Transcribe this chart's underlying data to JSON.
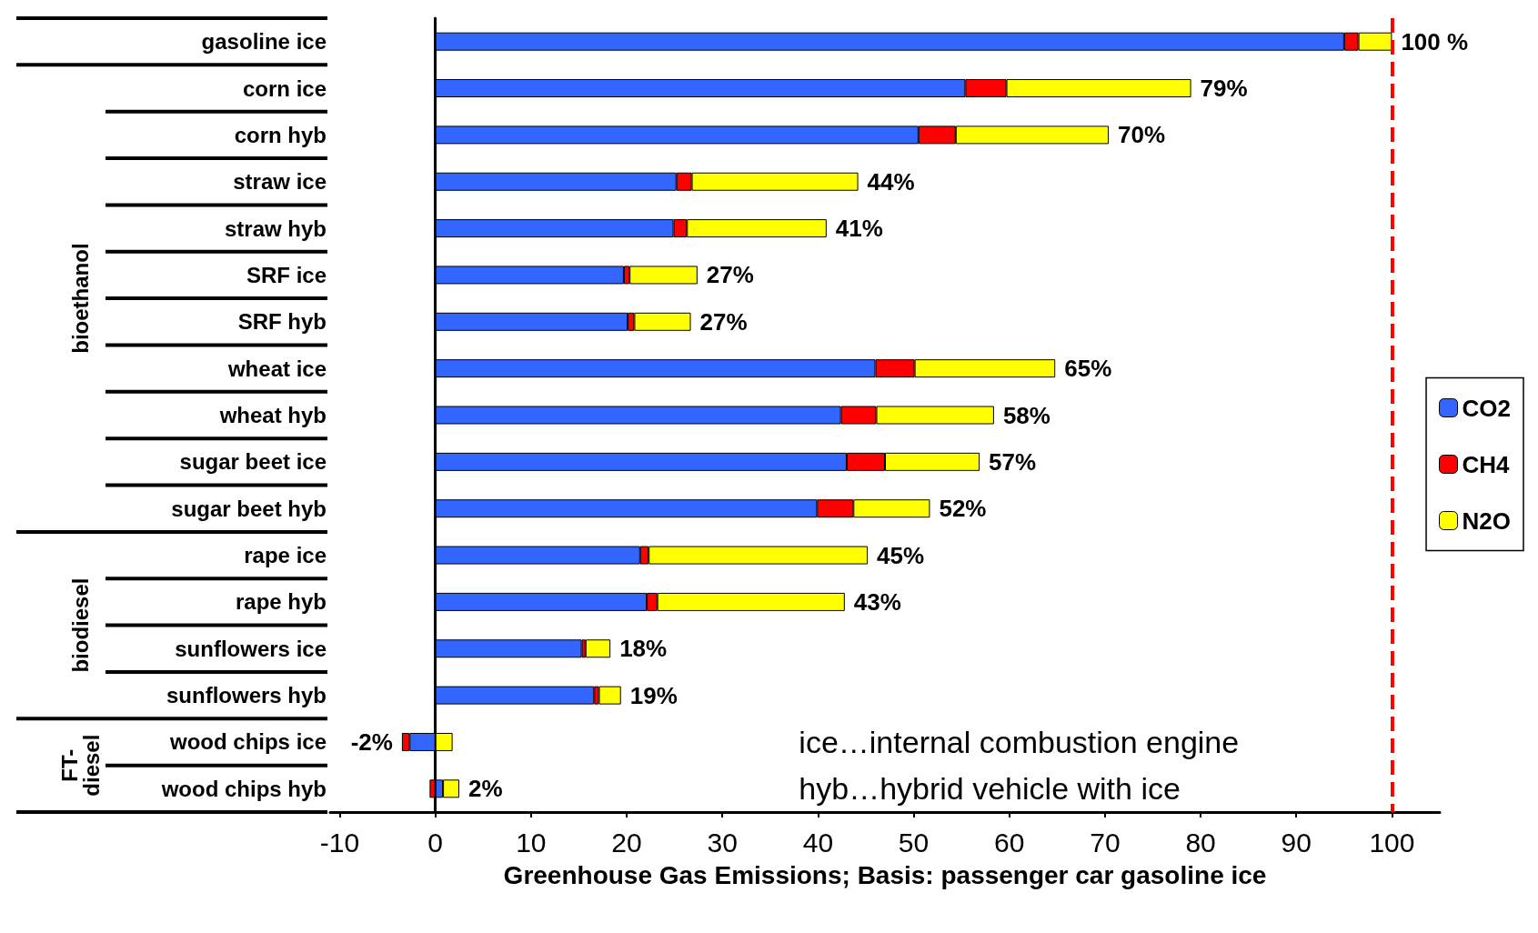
{
  "chart_data": {
    "type": "bar",
    "orientation": "horizontal",
    "stacked": true,
    "xlabel": "Greenhouse Gas Emissions; Basis: passenger car gasoline ice",
    "categories": [
      "gasoline ice",
      "corn ice",
      "corn hyb",
      "straw ice",
      "straw hyb",
      "SRF ice",
      "SRF hyb",
      "wheat ice",
      "wheat hyb",
      "sugar beet ice",
      "sugar beet hyb",
      "rape ice",
      "rape hyb",
      "sunflowers ice",
      "sunflowers hyb",
      "wood chips ice",
      "wood chips hyb"
    ],
    "series": [
      {
        "name": "CO2",
        "color": "#3366ff",
        "values": [
          95,
          55.4,
          50.5,
          25.2,
          24.9,
          19.7,
          20.1,
          46,
          42.4,
          43,
          39.9,
          21.4,
          22.1,
          15.3,
          16.6,
          -2.7,
          0.8
        ]
      },
      {
        "name": "CH4",
        "color": "#ff0000",
        "values": [
          1.5,
          4.3,
          3.9,
          1.6,
          1.4,
          0.6,
          0.7,
          4.1,
          3.7,
          4,
          3.8,
          0.9,
          1.1,
          0.4,
          0.5,
          -0.8,
          -0.6
        ]
      },
      {
        "name": "N2O",
        "color": "#ffff00",
        "values": [
          3.5,
          19.3,
          16,
          17.4,
          14.6,
          7.1,
          5.9,
          14.7,
          12.3,
          9.9,
          8,
          22.9,
          19.6,
          2.6,
          2.3,
          1.8,
          1.7
        ]
      }
    ],
    "totals": [
      "100 %",
      "79%",
      "70%",
      "44%",
      "41%",
      "27%",
      "27%",
      "65%",
      "58%",
      "57%",
      "52%",
      "45%",
      "43%",
      "18%",
      "19%",
      "-2%",
      "2%"
    ],
    "xlim": [
      -11,
      105
    ],
    "xticks": [
      -10,
      0,
      10,
      20,
      30,
      40,
      50,
      60,
      70,
      80,
      90,
      100
    ],
    "ref_lines": [
      {
        "axis": "x",
        "value": 100,
        "color": "#ff0000",
        "line_style": "dashed"
      }
    ],
    "annotations": [
      "ice…internal combustion engine",
      "hyb…hybrid vehicle with ice",
      "bioethanol",
      "biodiesel",
      "FT-\ndiesel"
    ],
    "legend": "right",
    "grid": false
  }
}
